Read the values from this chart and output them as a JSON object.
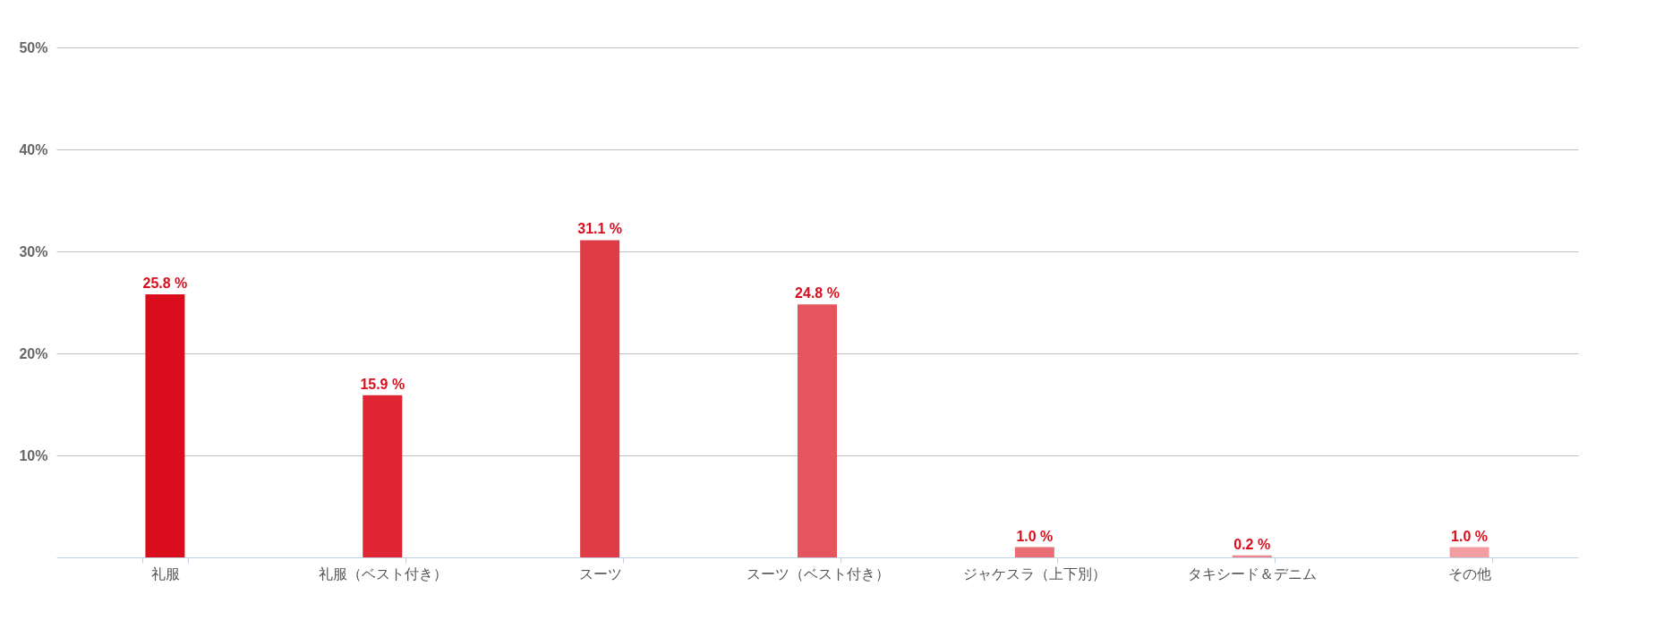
{
  "chart_data": {
    "type": "bar",
    "categories": [
      "礼服",
      "礼服（ベスト付き）",
      "スーツ",
      "スーツ（ベスト付き）",
      "ジャケスラ（上下別）",
      "タキシード＆デニム",
      "その他"
    ],
    "values": [
      25.8,
      15.9,
      31.1,
      24.8,
      1.0,
      0.2,
      1.0
    ],
    "colors": [
      "#d90d1c",
      "#df2433",
      "#e03c47",
      "#e6555e",
      "#ea6d75",
      "#ee858c",
      "#f19da2"
    ],
    "value_labels": [
      "25.8 %",
      "15.9 %",
      "31.1 %",
      "24.8 %",
      "1.0 %",
      "0.2 %",
      "1.0 %"
    ],
    "ylim": [
      0,
      50
    ],
    "yticks": [
      {
        "value": 10,
        "label": "10%"
      },
      {
        "value": 20,
        "label": "20%"
      },
      {
        "value": 30,
        "label": "30%"
      },
      {
        "value": 40,
        "label": "40%"
      },
      {
        "value": 50,
        "label": "50%"
      }
    ],
    "grid": "y"
  }
}
